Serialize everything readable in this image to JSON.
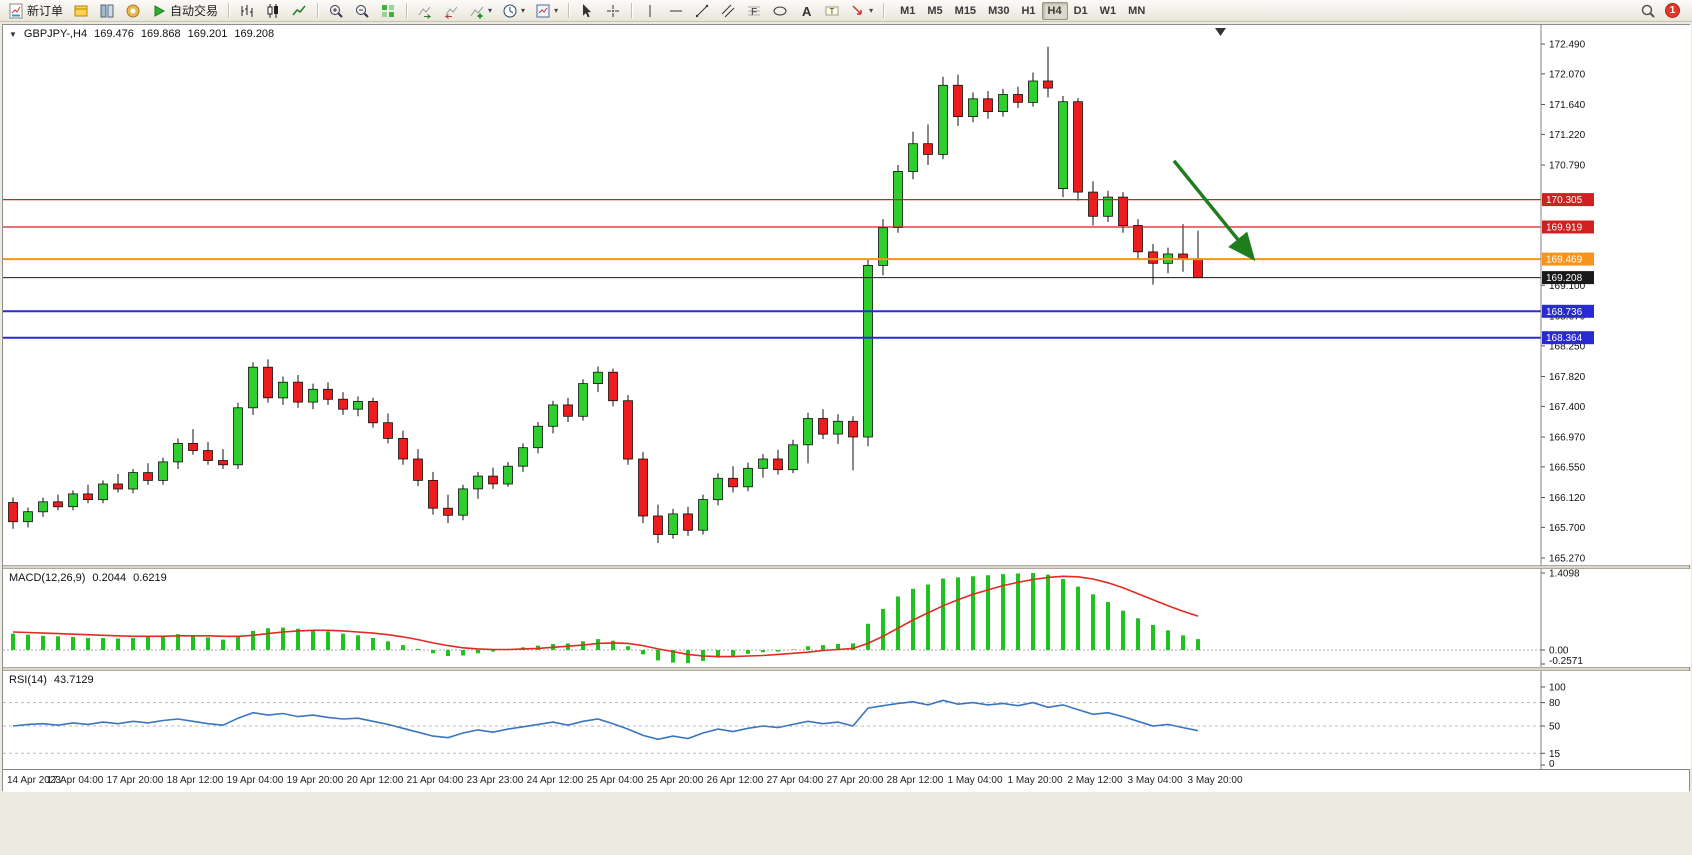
{
  "toolbar": {
    "buttons": [
      {
        "name": "new-order-button",
        "icon": "neworder",
        "label": "新订单"
      },
      {
        "name": "metaeditor-button",
        "icon": "metaeditor"
      },
      {
        "name": "profiles-button",
        "icon": "profiles"
      },
      {
        "name": "community-button",
        "icon": "community"
      },
      {
        "name": "autotrading-button",
        "icon": "play",
        "label": "自动交易"
      },
      {
        "sep": true
      },
      {
        "name": "bar-chart-button",
        "icon": "bars"
      },
      {
        "name": "candlestick-chart-button",
        "icon": "candles"
      },
      {
        "name": "line-chart-button",
        "icon": "line"
      },
      {
        "sep": true
      },
      {
        "name": "zoom-in-button",
        "icon": "zoomin"
      },
      {
        "name": "zoom-out-button",
        "icon": "zoomout"
      },
      {
        "name": "tile-windows-button",
        "icon": "tile"
      },
      {
        "sep": true
      },
      {
        "name": "auto-scroll-button",
        "icon": "autoscroll"
      },
      {
        "name": "chart-shift-button",
        "icon": "chartshift"
      },
      {
        "name": "indicators-button",
        "icon": "indicators",
        "dropdown": true
      },
      {
        "name": "periods-button",
        "icon": "clock",
        "dropdown": true
      },
      {
        "name": "templates-button",
        "icon": "template",
        "dropdown": true
      },
      {
        "sep": true
      },
      {
        "name": "cursor-button",
        "icon": "cursor"
      },
      {
        "name": "crosshair-button",
        "icon": "crosshair"
      },
      {
        "sep": true
      },
      {
        "name": "vertical-line-button",
        "icon": "vline"
      },
      {
        "name": "horizontal-line-button",
        "icon": "hline"
      },
      {
        "name": "trendline-button",
        "icon": "tline"
      },
      {
        "name": "equidistant-channel-button",
        "icon": "channel"
      },
      {
        "name": "fibonacci-button",
        "icon": "fibo"
      },
      {
        "name": "shapes-button",
        "icon": "shapes"
      },
      {
        "name": "text-button",
        "icon": "text"
      },
      {
        "name": "text-label-button",
        "icon": "label"
      },
      {
        "name": "arrows-button",
        "icon": "arrowtool",
        "dropdown": true
      },
      {
        "sep": true
      }
    ],
    "timeframes": [
      {
        "label": "M1"
      },
      {
        "label": "M5"
      },
      {
        "label": "M15"
      },
      {
        "label": "M30"
      },
      {
        "label": "H1"
      },
      {
        "label": "H4",
        "active": true
      },
      {
        "label": "D1"
      },
      {
        "label": "W1"
      },
      {
        "label": "MN"
      }
    ],
    "right": {
      "search_icon": "search",
      "notification_count": "1"
    }
  },
  "window": {
    "collapse_icon": "▼",
    "symbol_period": "GBPJPY-,H4",
    "open": "169.476",
    "high": "169.868",
    "low": "169.201",
    "close": "169.208"
  },
  "chart_data": [
    {
      "type": "candlestick",
      "symbol": "GBPJPY-",
      "period": "H4",
      "ylim": [
        165.27,
        172.49
      ],
      "y_ticks": [
        172.49,
        172.07,
        171.64,
        171.22,
        170.79,
        169.1,
        168.67,
        168.25,
        167.82,
        167.4,
        166.97,
        166.55,
        166.12,
        165.7,
        165.27
      ],
      "colors": {
        "up": "#2fce2f",
        "down": "#ee1c1c",
        "wick": "#111111"
      },
      "candles": [
        [
          166.05,
          166.12,
          165.68,
          165.78
        ],
        [
          165.78,
          165.98,
          165.7,
          165.92
        ],
        [
          165.92,
          166.12,
          165.85,
          166.06
        ],
        [
          166.06,
          166.16,
          165.94,
          165.99
        ],
        [
          165.99,
          166.22,
          165.94,
          166.17
        ],
        [
          166.17,
          166.3,
          166.04,
          166.09
        ],
        [
          166.09,
          166.36,
          166.04,
          166.31
        ],
        [
          166.31,
          166.45,
          166.19,
          166.24
        ],
        [
          166.24,
          166.52,
          166.18,
          166.47
        ],
        [
          166.47,
          166.6,
          166.3,
          166.36
        ],
        [
          166.36,
          166.68,
          166.3,
          166.62
        ],
        [
          166.62,
          166.95,
          166.52,
          166.88
        ],
        [
          166.88,
          167.08,
          166.72,
          166.78
        ],
        [
          166.78,
          166.9,
          166.58,
          166.64
        ],
        [
          166.64,
          166.8,
          166.52,
          166.58
        ],
        [
          166.58,
          167.45,
          166.52,
          167.38
        ],
        [
          167.38,
          168.02,
          167.28,
          167.95
        ],
        [
          167.95,
          168.06,
          167.45,
          167.52
        ],
        [
          167.52,
          167.82,
          167.42,
          167.74
        ],
        [
          167.74,
          167.84,
          167.38,
          167.46
        ],
        [
          167.46,
          167.72,
          167.36,
          167.64
        ],
        [
          167.64,
          167.74,
          167.42,
          167.5
        ],
        [
          167.5,
          167.6,
          167.28,
          167.36
        ],
        [
          167.36,
          167.54,
          167.26,
          167.47
        ],
        [
          167.47,
          167.52,
          167.1,
          167.17
        ],
        [
          167.17,
          167.3,
          166.88,
          166.95
        ],
        [
          166.95,
          167.06,
          166.58,
          166.66
        ],
        [
          166.66,
          166.8,
          166.28,
          166.36
        ],
        [
          166.36,
          166.48,
          165.88,
          165.97
        ],
        [
          165.97,
          166.16,
          165.76,
          165.87
        ],
        [
          165.87,
          166.3,
          165.8,
          166.24
        ],
        [
          166.24,
          166.48,
          166.1,
          166.42
        ],
        [
          166.42,
          166.54,
          166.24,
          166.31
        ],
        [
          166.31,
          166.62,
          166.27,
          166.56
        ],
        [
          166.56,
          166.88,
          166.48,
          166.82
        ],
        [
          166.82,
          167.18,
          166.74,
          167.12
        ],
        [
          167.12,
          167.48,
          167.02,
          167.42
        ],
        [
          167.42,
          167.52,
          167.18,
          167.26
        ],
        [
          167.26,
          167.78,
          167.2,
          167.72
        ],
        [
          167.72,
          167.96,
          167.6,
          167.88
        ],
        [
          167.88,
          167.93,
          167.4,
          167.48
        ],
        [
          167.48,
          167.56,
          166.58,
          166.66
        ],
        [
          166.66,
          166.76,
          165.76,
          165.86
        ],
        [
          165.86,
          166.02,
          165.48,
          165.6
        ],
        [
          165.6,
          165.96,
          165.54,
          165.89
        ],
        [
          165.89,
          165.99,
          165.58,
          165.66
        ],
        [
          165.66,
          166.16,
          165.6,
          166.09
        ],
        [
          166.09,
          166.46,
          166.01,
          166.39
        ],
        [
          166.39,
          166.56,
          166.19,
          166.27
        ],
        [
          166.27,
          166.61,
          166.21,
          166.53
        ],
        [
          166.53,
          166.73,
          166.4,
          166.66
        ],
        [
          166.66,
          166.79,
          166.44,
          166.51
        ],
        [
          166.51,
          166.93,
          166.46,
          166.86
        ],
        [
          166.86,
          167.31,
          166.6,
          167.23
        ],
        [
          167.23,
          167.36,
          166.94,
          167.01
        ],
        [
          167.01,
          167.29,
          166.87,
          167.19
        ],
        [
          167.19,
          167.26,
          166.5,
          166.97
        ],
        [
          166.97,
          169.46,
          166.84,
          169.38
        ],
        [
          169.38,
          170.03,
          169.24,
          169.91
        ],
        [
          169.91,
          170.79,
          169.84,
          170.7
        ],
        [
          170.7,
          171.26,
          170.59,
          171.09
        ],
        [
          171.09,
          171.36,
          170.79,
          170.94
        ],
        [
          170.94,
          172.03,
          170.87,
          171.91
        ],
        [
          171.91,
          172.06,
          171.34,
          171.47
        ],
        [
          171.47,
          171.81,
          171.39,
          171.72
        ],
        [
          171.72,
          171.83,
          171.44,
          171.54
        ],
        [
          171.54,
          171.86,
          171.47,
          171.78
        ],
        [
          171.78,
          171.89,
          171.59,
          171.67
        ],
        [
          171.67,
          172.09,
          171.61,
          171.97
        ],
        [
          171.97,
          172.45,
          171.74,
          171.87
        ],
        [
          170.46,
          171.76,
          170.34,
          171.68
        ],
        [
          171.68,
          171.73,
          170.29,
          170.41
        ],
        [
          170.41,
          170.56,
          169.94,
          170.07
        ],
        [
          170.07,
          170.43,
          169.99,
          170.34
        ],
        [
          170.34,
          170.41,
          169.84,
          169.94
        ],
        [
          169.94,
          170.03,
          169.47,
          169.57
        ],
        [
          169.57,
          169.68,
          169.11,
          169.41
        ],
        [
          169.41,
          169.63,
          169.27,
          169.54
        ],
        [
          169.54,
          169.96,
          169.29,
          169.47
        ],
        [
          169.476,
          169.868,
          169.201,
          169.208
        ]
      ],
      "hlines": [
        {
          "price": 170.305,
          "color": "#d02020",
          "width": 1.2,
          "label": "170.305",
          "role": "resistance-line"
        },
        {
          "price": 169.919,
          "color": "#d02020",
          "width": 1.2,
          "label": "169.919",
          "role": "resistance-line"
        },
        {
          "price": 169.469,
          "color": "#f7941d",
          "width": 2,
          "label": "169.469",
          "role": "support-line"
        },
        {
          "price": 169.208,
          "color": "#1a1a1a",
          "width": 1,
          "label": "169.208",
          "role": "bid-price-line"
        },
        {
          "price": 168.736,
          "color": "#2a2ad2",
          "width": 2,
          "label": "168.736",
          "role": "support-line"
        },
        {
          "price": 168.364,
          "color": "#2a2ad2",
          "width": 2,
          "label": "168.364",
          "role": "support-line"
        }
      ],
      "arrow": {
        "from_bar": 77.4,
        "from_price": 170.85,
        "to_bar": 82.6,
        "to_price": 169.5,
        "color": "#1e7e1e"
      }
    },
    {
      "type": "macd-histogram",
      "label": "MACD(12,26,9)",
      "macd_value": "0.2044",
      "signal_value": "0.6219",
      "ylim": [
        -0.2571,
        1.4098
      ],
      "y_ticks": [
        "1.4098",
        "0.00",
        "-0.2571"
      ],
      "colors": {
        "histogram": "#22c122",
        "signal": "#e02b20"
      },
      "histogram": [
        0.3,
        0.28,
        0.26,
        0.25,
        0.24,
        0.22,
        0.22,
        0.21,
        0.22,
        0.24,
        0.26,
        0.29,
        0.27,
        0.23,
        0.19,
        0.26,
        0.35,
        0.4,
        0.41,
        0.39,
        0.37,
        0.34,
        0.3,
        0.27,
        0.22,
        0.16,
        0.09,
        0.02,
        -0.06,
        -0.11,
        -0.1,
        -0.06,
        -0.03,
        0.01,
        0.05,
        0.08,
        0.11,
        0.12,
        0.16,
        0.2,
        0.17,
        0.07,
        -0.08,
        -0.19,
        -0.23,
        -0.24,
        -0.2,
        -0.14,
        -0.11,
        -0.07,
        -0.04,
        -0.03,
        0.01,
        0.07,
        0.09,
        0.11,
        0.12,
        0.48,
        0.75,
        0.98,
        1.12,
        1.2,
        1.31,
        1.33,
        1.35,
        1.37,
        1.39,
        1.4,
        1.41,
        1.38,
        1.3,
        1.16,
        1.02,
        0.88,
        0.72,
        0.58,
        0.46,
        0.36,
        0.27,
        0.2
      ],
      "signal": [
        0.33,
        0.32,
        0.31,
        0.3,
        0.29,
        0.28,
        0.27,
        0.26,
        0.25,
        0.25,
        0.25,
        0.26,
        0.26,
        0.26,
        0.25,
        0.25,
        0.27,
        0.3,
        0.33,
        0.35,
        0.36,
        0.36,
        0.35,
        0.33,
        0.31,
        0.28,
        0.24,
        0.19,
        0.13,
        0.08,
        0.04,
        0.02,
        0.01,
        0.01,
        0.02,
        0.03,
        0.05,
        0.07,
        0.09,
        0.12,
        0.13,
        0.12,
        0.08,
        0.02,
        -0.03,
        -0.08,
        -0.11,
        -0.12,
        -0.12,
        -0.11,
        -0.1,
        -0.08,
        -0.06,
        -0.04,
        -0.01,
        0.01,
        0.03,
        0.12,
        0.25,
        0.4,
        0.55,
        0.68,
        0.81,
        0.92,
        1.02,
        1.1,
        1.18,
        1.24,
        1.29,
        1.33,
        1.35,
        1.34,
        1.3,
        1.23,
        1.14,
        1.03,
        0.92,
        0.81,
        0.71,
        0.62
      ]
    },
    {
      "type": "rsi",
      "label": "RSI(14)",
      "value": "43.7129",
      "ylim": [
        0,
        100
      ],
      "levels": [
        80,
        50,
        15
      ],
      "y_ticks": [
        "100",
        "80",
        "50",
        "15",
        "0"
      ],
      "color": "#3a76c0",
      "values": [
        50,
        52,
        53,
        51,
        54,
        52,
        55,
        53,
        56,
        54,
        57,
        59,
        56,
        53,
        51,
        60,
        67,
        64,
        66,
        62,
        64,
        61,
        59,
        60,
        56,
        52,
        47,
        42,
        37,
        35,
        41,
        45,
        42,
        46,
        49,
        52,
        55,
        51,
        56,
        59,
        53,
        46,
        38,
        33,
        37,
        34,
        41,
        46,
        43,
        47,
        50,
        48,
        52,
        56,
        53,
        55,
        50,
        73,
        76,
        79,
        81,
        77,
        83,
        78,
        80,
        77,
        79,
        76,
        80,
        74,
        77,
        71,
        65,
        67,
        62,
        56,
        50,
        52,
        48,
        44
      ]
    }
  ],
  "time_axis": {
    "labels": [
      "14 Apr 2023",
      "17 Apr 04:00",
      "17 Apr 20:00",
      "18 Apr 12:00",
      "19 Apr 04:00",
      "19 Apr 20:00",
      "20 Apr 12:00",
      "21 Apr 04:00",
      "23 Apr 23:00",
      "24 Apr 12:00",
      "25 Apr 04:00",
      "25 Apr 20:00",
      "26 Apr 12:00",
      "27 Apr 04:00",
      "27 Apr 20:00",
      "28 Apr 12:00",
      "1 May 04:00",
      "1 May 20:00",
      "2 May 12:00",
      "3 May 04:00",
      "3 May 20:00"
    ]
  }
}
